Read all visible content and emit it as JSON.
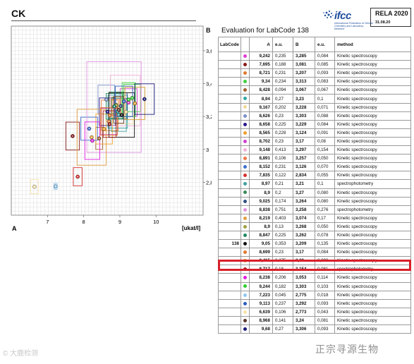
{
  "header": {
    "title": "CK",
    "ifcc_word": "ifcc",
    "ifcc_subtitle": "International Federation of Clinical Chemistry and Laboratory Medicine",
    "rela_title": "RELA 2020",
    "rela_date": "31.08.20"
  },
  "panel_labels": {
    "a": "A",
    "b": "B"
  },
  "evaluation_title": "Evaluation for LabCode 138",
  "chart_data": {
    "type": "scatter",
    "title": "",
    "xlabel": "[ukat/l]",
    "ylabel": "",
    "xlim": [
      6.0,
      11.3
    ],
    "ylim": [
      2.6,
      3.75
    ],
    "x_ticks": [
      "7",
      "8",
      "9",
      "10"
    ],
    "y_ticks": [
      "2,8",
      "3",
      "3,2",
      "3,4",
      "3,6"
    ],
    "grid": true,
    "points": [
      {
        "x": 9.242,
        "y": 3.285,
        "ea": 0.235,
        "eb": 0.084,
        "color": "#e040d0"
      },
      {
        "x": 7.695,
        "y": 3.081,
        "ea": 0.188,
        "eb": 0.085,
        "color": "#8b1a1a"
      },
      {
        "x": 8.721,
        "y": 3.207,
        "ea": 0.231,
        "eb": 0.093,
        "color": "#e07a30"
      },
      {
        "x": 9.34,
        "y": 3.313,
        "ea": 0.234,
        "eb": 0.083,
        "color": "#40d040"
      },
      {
        "x": 8.428,
        "y": 3.067,
        "ea": 0.094,
        "eb": 0.067,
        "color": "#a06030"
      },
      {
        "x": 8.94,
        "y": 3.23,
        "ea": 0.27,
        "eb": 0.1,
        "color": "#30a8a8"
      },
      {
        "x": 9.167,
        "y": 3.228,
        "ea": 0.202,
        "eb": 0.071,
        "color": "#f2d898"
      },
      {
        "x": 8.626,
        "y": 3.303,
        "ea": 0.23,
        "eb": 0.088,
        "color": "#7a90c8"
      },
      {
        "x": 8.658,
        "y": 3.229,
        "ea": 0.225,
        "eb": 0.084,
        "color": "#2a1a8a"
      },
      {
        "x": 8.565,
        "y": 3.124,
        "ea": 0.228,
        "eb": 0.091,
        "color": "#f0a030"
      },
      {
        "x": 8.702,
        "y": 3.17,
        "ea": 0.23,
        "eb": 0.08,
        "color": "#d040d0"
      },
      {
        "x": 9.148,
        "y": 3.297,
        "ea": 0.413,
        "eb": 0.154,
        "color": "#f0b0d8"
      },
      {
        "x": 8.891,
        "y": 3.257,
        "ea": 0.106,
        "eb": 0.05,
        "color": "#f07848"
      },
      {
        "x": 8.152,
        "y": 3.126,
        "ea": 0.231,
        "eb": 0.07,
        "color": "#4070d0"
      },
      {
        "x": 7.835,
        "y": 2.834,
        "ea": 0.122,
        "eb": 0.055,
        "color": "#d83030"
      },
      {
        "x": 8.97,
        "y": 3.21,
        "ea": 0.21,
        "eb": 0.1,
        "color": "#40a0a0"
      },
      {
        "x": 8.9,
        "y": 3.27,
        "ea": 0.2,
        "eb": 0.08,
        "color": "#3a8a5a"
      },
      {
        "x": 9.025,
        "y": 3.264,
        "ea": 0.174,
        "eb": 0.08,
        "color": "#305080"
      },
      {
        "x": 8.838,
        "y": 3.258,
        "ea": 0.751,
        "eb": 0.276,
        "color": "#e090e0"
      },
      {
        "x": 8.219,
        "y": 3.074,
        "ea": 0.403,
        "eb": 0.17,
        "color": "#e0a040"
      },
      {
        "x": 8.9,
        "y": 3.268,
        "ea": 0.13,
        "eb": 0.05,
        "color": "#a0a040"
      },
      {
        "x": 8.847,
        "y": 3.262,
        "ea": 0.225,
        "eb": 0.078,
        "color": "#208a60"
      },
      {
        "x": 9.05,
        "y": 3.209,
        "ea": 0.353,
        "eb": 0.135,
        "color": "#111111"
      },
      {
        "x": 8.699,
        "y": 3.17,
        "ea": 0.23,
        "eb": 0.084,
        "color": "#e07a30"
      },
      {
        "x": 9.415,
        "y": 3.28,
        "ea": 0.275,
        "eb": 0.098,
        "color": "#d8a030"
      },
      {
        "x": 8.717,
        "y": 3.154,
        "ea": 0.18,
        "eb": 0.081,
        "color": "#a02020"
      },
      {
        "x": 8.238,
        "y": 3.053,
        "ea": 0.206,
        "eb": 0.114,
        "color": "#e020e0"
      },
      {
        "x": 9.244,
        "y": 3.303,
        "ea": 0.182,
        "eb": 0.103,
        "color": "#30d030"
      },
      {
        "x": 7.223,
        "y": 2.775,
        "ea": 0.045,
        "eb": 0.018,
        "color": "#90c8f0"
      },
      {
        "x": 9.113,
        "y": 3.292,
        "ea": 0.237,
        "eb": 0.093,
        "color": "#3060c0"
      },
      {
        "x": 6.639,
        "y": 2.773,
        "ea": 0.106,
        "eb": 0.043,
        "color": "#f6e2a8"
      },
      {
        "x": 8.968,
        "y": 3.24,
        "ea": 0.141,
        "eb": 0.081,
        "color": "#5a3a2a"
      },
      {
        "x": 9.68,
        "y": 3.306,
        "ea": 0.27,
        "eb": 0.093,
        "color": "#1a1a7a"
      }
    ]
  },
  "table": {
    "headers": [
      "LabCode",
      "",
      "A",
      "e.u.",
      "B",
      "e.u.",
      "method"
    ],
    "highlight_row": 22,
    "rows": [
      {
        "lab": "",
        "color": "#e040d0",
        "a": "9,242",
        "ea": "0,235",
        "b": "3,285",
        "eb": "0,084",
        "method": "Kinetic spectroscopy"
      },
      {
        "lab": "",
        "color": "#8b1a1a",
        "a": "7,695",
        "ea": "0,188",
        "b": "3,081",
        "eb": "0,085",
        "method": "Kinetic spectroscopy"
      },
      {
        "lab": "",
        "color": "#e07a30",
        "a": "8,721",
        "ea": "0,231",
        "b": "3,207",
        "eb": "0,093",
        "method": "Kinetic spectroscopy"
      },
      {
        "lab": "",
        "color": "#40d040",
        "a": "9,34",
        "ea": "0,234",
        "b": "3,313",
        "eb": "0,083",
        "method": "Kinetic spectroscopy"
      },
      {
        "lab": "",
        "color": "#a06030",
        "a": "8,428",
        "ea": "0,094",
        "b": "3,067",
        "eb": "0,067",
        "method": "Kinetic spectroscopy"
      },
      {
        "lab": "",
        "color": "#30a8a8",
        "a": "8,94",
        "ea": "0,27",
        "b": "3,23",
        "eb": "0,1",
        "method": "Kinetic spectroscopy"
      },
      {
        "lab": "",
        "color": "#f2d898",
        "a": "9,167",
        "ea": "0,202",
        "b": "3,228",
        "eb": "0,071",
        "method": "Kinetic spectroscopy"
      },
      {
        "lab": "",
        "color": "#7a90c8",
        "a": "8,626",
        "ea": "0,23",
        "b": "3,303",
        "eb": "0,088",
        "method": "Kinetic spectroscopy"
      },
      {
        "lab": "",
        "color": "#2a1a8a",
        "a": "8,658",
        "ea": "0,225",
        "b": "3,229",
        "eb": "0,084",
        "method": "Kinetic spectroscopy"
      },
      {
        "lab": "",
        "color": "#f0a030",
        "a": "8,565",
        "ea": "0,228",
        "b": "3,124",
        "eb": "0,091",
        "method": "Kinetic spectroscopy"
      },
      {
        "lab": "",
        "color": "#d040d0",
        "a": "8,702",
        "ea": "0,23",
        "b": "3,17",
        "eb": "0,08",
        "method": "Kinetic spectroscopy"
      },
      {
        "lab": "",
        "color": "#f0b0d8",
        "a": "9,148",
        "ea": "0,413",
        "b": "3,297",
        "eb": "0,154",
        "method": "Kinetic spectroscopy"
      },
      {
        "lab": "",
        "color": "#f07848",
        "a": "8,891",
        "ea": "0,106",
        "b": "3,257",
        "eb": "0,050",
        "method": "Kinetic spectroscopy"
      },
      {
        "lab": "",
        "color": "#4070d0",
        "a": "8,152",
        "ea": "0,231",
        "b": "3,126",
        "eb": "0,070",
        "method": "Kinetic spectroscopy"
      },
      {
        "lab": "",
        "color": "#d83030",
        "a": "7,835",
        "ea": "0,122",
        "b": "2,834",
        "eb": "0,055",
        "method": "Kinetic spectroscopy"
      },
      {
        "lab": "",
        "color": "#40a0a0",
        "a": "8,97",
        "ea": "0,21",
        "b": "3,21",
        "eb": "0,1",
        "method": "spectrophotometry"
      },
      {
        "lab": "",
        "color": "#3a8a5a",
        "a": "8,9",
        "ea": "0,2",
        "b": "3,27",
        "eb": "0,080",
        "method": "Kinetic spectroscopy"
      },
      {
        "lab": "",
        "color": "#305080",
        "a": "9,025",
        "ea": "0,174",
        "b": "3,264",
        "eb": "0,080",
        "method": "Kinetic spectroscopy"
      },
      {
        "lab": "",
        "color": "#e090e0",
        "a": "8,838",
        "ea": "0,751",
        "b": "3,258",
        "eb": "0,276",
        "method": "spectrophotometry"
      },
      {
        "lab": "",
        "color": "#e0a040",
        "a": "8,219",
        "ea": "0,403",
        "b": "3,074",
        "eb": "0,17",
        "method": "Kinetic spectroscopy"
      },
      {
        "lab": "",
        "color": "#a0a040",
        "a": "8,9",
        "ea": "0,13",
        "b": "3,268",
        "eb": "0,050",
        "method": "Kinetic spectroscopy"
      },
      {
        "lab": "",
        "color": "#208a60",
        "a": "8,847",
        "ea": "0,225",
        "b": "3,262",
        "eb": "0,078",
        "method": "Kinetic spectroscopy"
      },
      {
        "lab": "138",
        "color": "#111111",
        "a": "9,05",
        "ea": "0,353",
        "b": "3,209",
        "eb": "0,135",
        "method": "Kinetic spectroscopy"
      },
      {
        "lab": "",
        "color": "#e07a30",
        "a": "8,699",
        "ea": "0,23",
        "b": "3,17",
        "eb": "0,084",
        "method": "Kinetic spectroscopy"
      },
      {
        "lab": "",
        "color": "#d8a030",
        "a": "9,415",
        "ea": "0,275",
        "b": "3,28",
        "eb": "0,098",
        "method": "Kinetic spectroscopy"
      },
      {
        "lab": "",
        "color": "#a02020",
        "a": "8,717",
        "ea": "0,18",
        "b": "3,154",
        "eb": "0,081",
        "method": "spectrophotometry"
      },
      {
        "lab": "",
        "color": "#e020e0",
        "a": "8,238",
        "ea": "0,206",
        "b": "3,053",
        "eb": "0,114",
        "method": "Kinetic spectroscopy"
      },
      {
        "lab": "",
        "color": "#30d030",
        "a": "9,244",
        "ea": "0,182",
        "b": "3,303",
        "eb": "0,103",
        "method": "Kinetic spectroscopy"
      },
      {
        "lab": "",
        "color": "#90c8f0",
        "a": "7,223",
        "ea": "0,045",
        "b": "2,775",
        "eb": "0,018",
        "method": "Kinetic spectroscopy"
      },
      {
        "lab": "",
        "color": "#3060c0",
        "a": "9,113",
        "ea": "0,237",
        "b": "3,292",
        "eb": "0,093",
        "method": "Kinetic spectroscopy"
      },
      {
        "lab": "",
        "color": "#f6e2a8",
        "a": "6,639",
        "ea": "0,106",
        "b": "2,773",
        "eb": "0,043",
        "method": "Kinetic spectroscopy"
      },
      {
        "lab": "",
        "color": "#5a3a2a",
        "a": "8,968",
        "ea": "0,141",
        "b": "3,24",
        "eb": "0,081",
        "method": "Kinetic spectroscopy"
      },
      {
        "lab": "",
        "color": "#1a1a7a",
        "a": "9,68",
        "ea": "0,27",
        "b": "3,306",
        "eb": "0,093",
        "method": "Kinetic spectroscopy"
      }
    ]
  },
  "watermarks": {
    "left": "© 大鹿检测",
    "right": "正宗寻源生物"
  }
}
